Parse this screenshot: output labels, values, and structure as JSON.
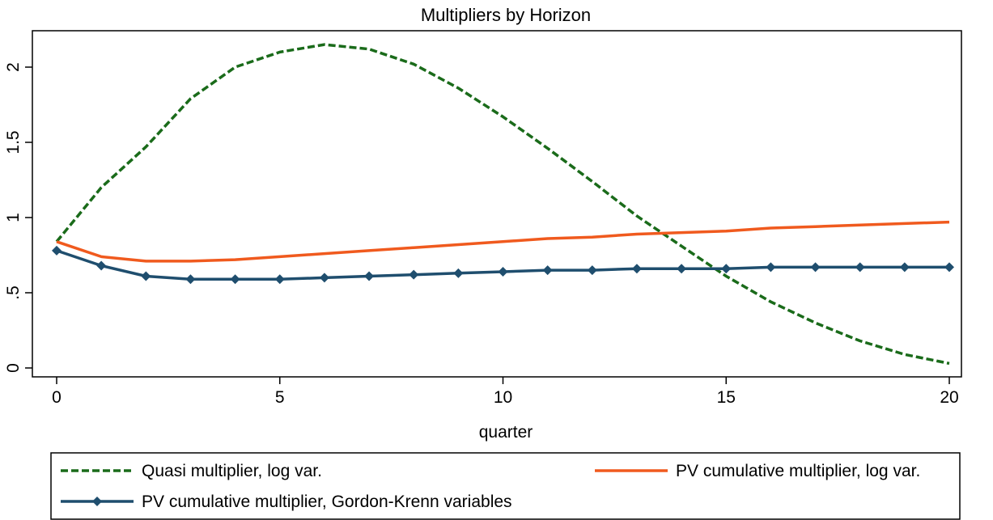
{
  "chart_data": {
    "type": "line",
    "title": "Multipliers by Horizon",
    "xlabel": "quarter",
    "ylabel": "",
    "xlim": [
      0,
      20
    ],
    "ylim": [
      0,
      2.2
    ],
    "xticks": [
      0,
      5,
      10,
      15,
      20
    ],
    "yticks": [
      0,
      0.5,
      1,
      1.5,
      2
    ],
    "xtick_labels": [
      "0",
      "5",
      "10",
      "15",
      "20"
    ],
    "ytick_labels": [
      "0",
      ".5",
      "1",
      "1.5",
      "2"
    ],
    "grid": false,
    "legend_position": "bottom",
    "x": [
      0,
      1,
      2,
      3,
      4,
      5,
      6,
      7,
      8,
      9,
      10,
      11,
      12,
      13,
      14,
      15,
      16,
      17,
      18,
      19,
      20
    ],
    "series": [
      {
        "name": "Quasi multiplier, log var.",
        "color": "#1a6b1a",
        "style": "dashed",
        "marker": "none",
        "values": [
          0.84,
          1.2,
          1.47,
          1.79,
          2.0,
          2.1,
          2.15,
          2.12,
          2.02,
          1.86,
          1.67,
          1.46,
          1.24,
          1.01,
          0.81,
          0.61,
          0.44,
          0.3,
          0.18,
          0.09,
          0.03
        ]
      },
      {
        "name": "PV cumulative multiplier, log var.",
        "color": "#f05a1e",
        "style": "solid",
        "marker": "none",
        "values": [
          0.84,
          0.74,
          0.71,
          0.71,
          0.72,
          0.74,
          0.76,
          0.78,
          0.8,
          0.82,
          0.84,
          0.86,
          0.87,
          0.89,
          0.9,
          0.91,
          0.93,
          0.94,
          0.95,
          0.96,
          0.97
        ]
      },
      {
        "name": "PV cumulative multiplier, Gordon-Krenn variables",
        "color": "#1f4e6e",
        "style": "solid",
        "marker": "diamond",
        "values": [
          0.78,
          0.68,
          0.61,
          0.59,
          0.59,
          0.59,
          0.6,
          0.61,
          0.62,
          0.63,
          0.64,
          0.65,
          0.65,
          0.66,
          0.66,
          0.66,
          0.67,
          0.67,
          0.67,
          0.67,
          0.67
        ]
      }
    ]
  }
}
